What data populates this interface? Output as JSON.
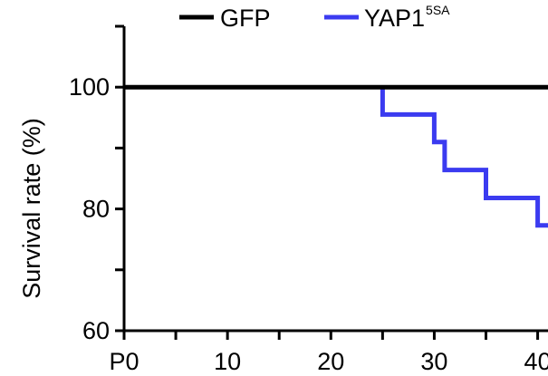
{
  "chart_data": {
    "type": "line",
    "title": "",
    "xlabel": "",
    "ylabel": "Survival rate (%)",
    "xlim": [
      0,
      41
    ],
    "ylim": [
      60,
      110
    ],
    "x_ticks": [
      0,
      10,
      20,
      30,
      40
    ],
    "x_minor_ticks": [
      5,
      15,
      25,
      35
    ],
    "x_tick_labels": [
      "P0",
      "10",
      "20",
      "30",
      "40"
    ],
    "y_ticks": [
      60,
      80,
      100
    ],
    "y_minor_ticks": [
      70,
      90,
      110
    ],
    "y_tick_labels": [
      "60",
      "80",
      "100"
    ],
    "legend_position": "top",
    "grid": false,
    "step": true,
    "series": [
      {
        "name": "GFP",
        "color": "#000000",
        "points": [
          [
            0,
            100
          ],
          [
            41,
            100
          ]
        ]
      },
      {
        "name": "YAP1",
        "name_superscript": "5SA",
        "color": "#3b3bf0",
        "points": [
          [
            25,
            100
          ],
          [
            25,
            95.5
          ],
          [
            30,
            95.5
          ],
          [
            30,
            91
          ],
          [
            31,
            91
          ],
          [
            31,
            86.4
          ],
          [
            35,
            86.4
          ],
          [
            35,
            81.8
          ],
          [
            40,
            81.8
          ],
          [
            40,
            77.3
          ],
          [
            41,
            77.3
          ]
        ]
      }
    ]
  }
}
